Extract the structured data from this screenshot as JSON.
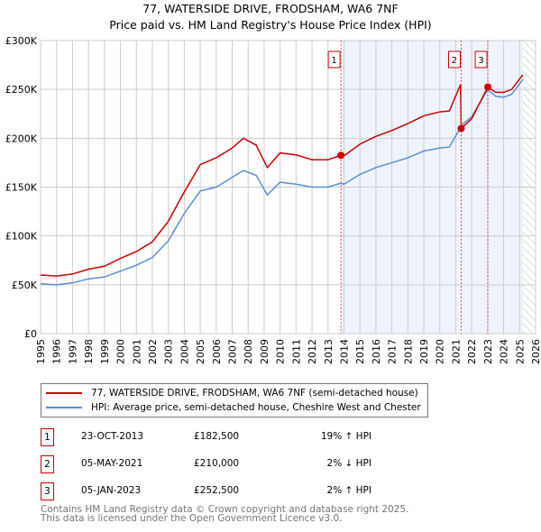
{
  "title": "77, WATERSIDE DRIVE, FRODSHAM, WA6 7NF",
  "subtitle": "Price paid vs. HM Land Registry's House Price Index (HPI)",
  "chart_data": {
    "type": "line",
    "xlim": [
      1995,
      2026
    ],
    "ylim": [
      0,
      300000
    ],
    "x_ticks": [
      "1995",
      "1996",
      "1997",
      "1998",
      "1999",
      "2000",
      "2001",
      "2002",
      "2003",
      "2004",
      "2005",
      "2006",
      "2007",
      "2008",
      "2009",
      "2010",
      "2011",
      "2012",
      "2013",
      "2014",
      "2015",
      "2016",
      "2017",
      "2018",
      "2019",
      "2020",
      "2021",
      "2022",
      "2023",
      "2024",
      "2025",
      "2026"
    ],
    "y_ticks": [
      {
        "v": 0,
        "label": "£0"
      },
      {
        "v": 50000,
        "label": "£50K"
      },
      {
        "v": 100000,
        "label": "£100K"
      },
      {
        "v": 150000,
        "label": "£150K"
      },
      {
        "v": 200000,
        "label": "£200K"
      },
      {
        "v": 250000,
        "label": "£250K"
      },
      {
        "v": 300000,
        "label": "£300K"
      }
    ],
    "shaded_from": 2013.81,
    "hatched_from": 2025.2,
    "series": [
      {
        "name": "77, WATERSIDE DRIVE, FRODSHAM, WA6 7NF (semi-detached house)",
        "color": "#cc0000",
        "x": [
          1995,
          1996,
          1997,
          1998,
          1999,
          2000,
          2001,
          2002,
          2003,
          2004,
          2005,
          2006,
          2007,
          2007.7,
          2008.5,
          2009.2,
          2010,
          2011,
          2012,
          2013,
          2013.81,
          2014,
          2015,
          2016,
          2017,
          2018,
          2019,
          2020,
          2020.6,
          2021.3,
          2021.34,
          2022,
          2023.01,
          2023.5,
          2024,
          2024.5,
          2025.2
        ],
        "y": [
          60000,
          59000,
          61000,
          66000,
          69000,
          77000,
          84000,
          94000,
          115000,
          145000,
          173000,
          180000,
          190000,
          200000,
          193000,
          170000,
          185000,
          183000,
          178000,
          178000,
          182500,
          182000,
          194000,
          202000,
          208000,
          215000,
          223000,
          227000,
          228000,
          255000,
          210000,
          220000,
          252500,
          247000,
          247000,
          250000,
          265000
        ]
      },
      {
        "name": "HPI: Average price, semi-detached house, Cheshire West and Chester",
        "color": "#5b8fd4",
        "x": [
          1995,
          1996,
          1997,
          1998,
          1999,
          2000,
          2001,
          2002,
          2003,
          2004,
          2005,
          2006,
          2007,
          2007.7,
          2008.5,
          2009.2,
          2010,
          2011,
          2012,
          2013,
          2013.81,
          2014,
          2015,
          2016,
          2017,
          2018,
          2019,
          2020,
          2020.6,
          2021.4,
          2022,
          2023,
          2023.5,
          2024,
          2024.5,
          2025.2
        ],
        "y": [
          51000,
          50000,
          52000,
          56000,
          58000,
          64000,
          70000,
          78000,
          95000,
          123000,
          146000,
          150000,
          160000,
          167000,
          162000,
          142000,
          155000,
          153000,
          150000,
          150000,
          154000,
          153000,
          163000,
          170000,
          175000,
          180000,
          187000,
          190000,
          191000,
          214000,
          222000,
          250000,
          243000,
          242000,
          245000,
          260000
        ]
      }
    ],
    "sales": [
      {
        "n": "1",
        "x": 2013.81,
        "y": 182500,
        "date": "23-OCT-2013",
        "price": "£182,500",
        "hpi": "19% ↑ HPI"
      },
      {
        "n": "2",
        "x": 2021.34,
        "y": 210000,
        "date": "05-MAY-2021",
        "price": "£210,000",
        "hpi": "2% ↓ HPI"
      },
      {
        "n": "3",
        "x": 2023.01,
        "y": 252500,
        "date": "05-JAN-2023",
        "price": "£252,500",
        "hpi": "2% ↑ HPI"
      }
    ]
  },
  "footer": [
    "Contains HM Land Registry data © Crown copyright and database right 2025.",
    "This data is licensed under the Open Government Licence v3.0."
  ]
}
